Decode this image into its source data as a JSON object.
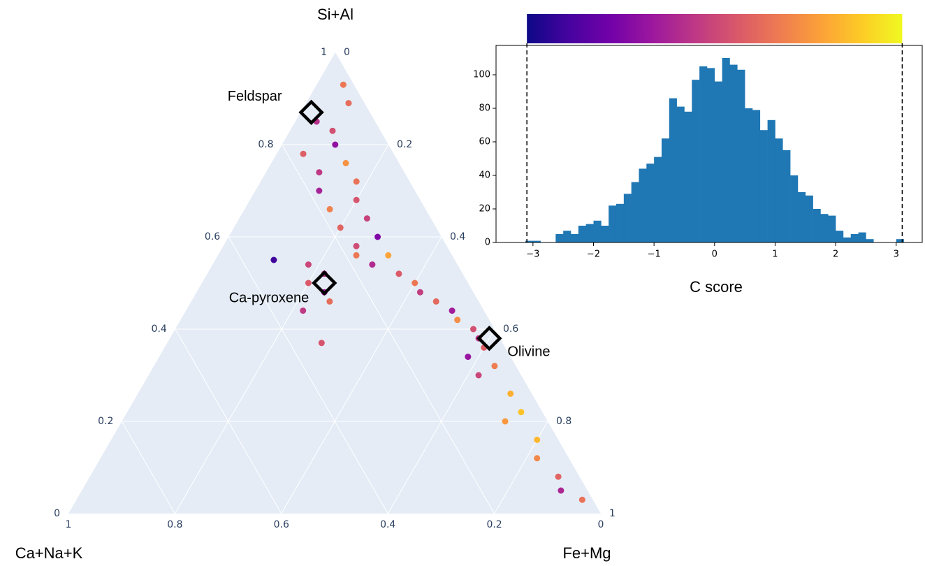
{
  "chart_data": [
    {
      "type": "ternary",
      "a_title": "Si+Al",
      "b_title": "Ca+Na+K",
      "c_title": "Fe+Mg",
      "aticks": [
        0,
        0.2,
        0.4,
        0.6,
        0.8,
        1
      ],
      "bticks": [
        0,
        0.2,
        0.4,
        0.6,
        0.8,
        1
      ],
      "cticks": [
        0,
        0.2,
        0.4,
        0.6,
        0.8,
        1
      ],
      "grid": true,
      "a": [
        0.93,
        0.89,
        0.85,
        0.83,
        0.8,
        0.78,
        0.76,
        0.74,
        0.72,
        0.7,
        0.68,
        0.66,
        0.64,
        0.62,
        0.6,
        0.58,
        0.56,
        0.54,
        0.52,
        0.5,
        0.48,
        0.46,
        0.44,
        0.42,
        0.4,
        0.38,
        0.36,
        0.34,
        0.32,
        0.3,
        0.26,
        0.22,
        0.2,
        0.16,
        0.12,
        0.08,
        0.05,
        0.03,
        0.52,
        0.5,
        0.48,
        0.46,
        0.54,
        0.44,
        0.56,
        0.55,
        0.37
      ],
      "b": [
        0.02,
        0.03,
        0.11,
        0.09,
        0.1,
        0.17,
        0.1,
        0.16,
        0.1,
        0.18,
        0.12,
        0.18,
        0.12,
        0.18,
        0.12,
        0.17,
        0.12,
        0.16,
        0.12,
        0.1,
        0.1,
        0.08,
        0.06,
        0.06,
        0.04,
        0.04,
        0.04,
        0.08,
        0.04,
        0.08,
        0.04,
        0.04,
        0.08,
        0.04,
        0.06,
        0.04,
        0.05,
        0.02,
        0.26,
        0.3,
        0.28,
        0.28,
        0.28,
        0.34,
        0.18,
        0.34,
        0.34
      ],
      "c": [
        0.05,
        0.08,
        0.04,
        0.08,
        0.1,
        0.05,
        0.14,
        0.1,
        0.18,
        0.12,
        0.2,
        0.16,
        0.24,
        0.2,
        0.28,
        0.25,
        0.32,
        0.3,
        0.36,
        0.4,
        0.42,
        0.46,
        0.5,
        0.52,
        0.56,
        0.58,
        0.6,
        0.58,
        0.64,
        0.62,
        0.7,
        0.74,
        0.72,
        0.8,
        0.82,
        0.88,
        0.9,
        0.95,
        0.22,
        0.2,
        0.24,
        0.26,
        0.18,
        0.22,
        0.26,
        0.11,
        0.29
      ],
      "color_values": [
        1.0,
        0.8,
        -0.5,
        0.2,
        -1.2,
        0.5,
        1.5,
        -0.3,
        0.9,
        -0.8,
        0.3,
        1.2,
        -0.1,
        0.6,
        -1.5,
        0.1,
        1.8,
        -0.6,
        0.4,
        1.0,
        -0.2,
        0.7,
        -0.9,
        1.4,
        0.2,
        -0.4,
        0.5,
        -1.1,
        1.1,
        0.0,
        2.0,
        2.3,
        1.6,
        2.1,
        1.3,
        0.6,
        -0.7,
        0.9,
        -0.5,
        0.4,
        -1.0,
        0.8,
        0.0,
        -0.3,
        1.0,
        -2.5,
        0.3
      ],
      "markers": [
        {
          "label": "Feldspar",
          "a": 0.87,
          "b": 0.11,
          "c": 0.02
        },
        {
          "label": "Ca-pyroxene",
          "a": 0.5,
          "b": 0.27,
          "c": 0.23
        },
        {
          "label": "Olivine",
          "a": 0.38,
          "b": 0.02,
          "c": 0.6
        }
      ]
    },
    {
      "type": "histogram",
      "xlabel": "C score",
      "bins": [
        -3.125,
        -3.0,
        -2.875,
        -2.75,
        -2.625,
        -2.5,
        -2.375,
        -2.25,
        -2.125,
        -2.0,
        -1.875,
        -1.75,
        -1.625,
        -1.5,
        -1.375,
        -1.25,
        -1.125,
        -1.0,
        -0.875,
        -0.75,
        -0.625,
        -0.5,
        -0.375,
        -0.25,
        -0.125,
        0,
        0.125,
        0.25,
        0.375,
        0.5,
        0.625,
        0.75,
        0.875,
        1.0,
        1.125,
        1.25,
        1.375,
        1.5,
        1.625,
        1.75,
        1.875,
        2.0,
        2.125,
        2.25,
        2.375,
        2.5,
        2.625,
        2.75,
        2.875,
        3.0,
        3.125
      ],
      "counts": [
        1,
        1,
        0,
        0,
        5,
        7,
        5,
        10,
        11,
        13,
        10,
        22,
        23,
        29,
        36,
        44,
        47,
        51,
        62,
        86,
        81,
        78,
        97,
        105,
        104,
        96,
        110,
        106,
        103,
        80,
        79,
        67,
        73,
        62,
        55,
        40,
        30,
        28,
        20,
        17,
        16,
        7,
        3,
        5,
        6,
        2,
        0,
        0,
        0,
        2
      ],
      "color": "#1f77b4",
      "xlim": [
        -3.61,
        3.43
      ],
      "ylim": [
        0,
        117.5
      ],
      "xticks": [
        {
          "value": -3,
          "label": "−3"
        },
        {
          "value": -2,
          "label": "−2"
        },
        {
          "value": -1,
          "label": "−1"
        },
        0,
        1,
        2,
        3
      ],
      "yticks": [
        0,
        20,
        40,
        60,
        80,
        100
      ],
      "colorbar": {
        "range": [
          -3.1,
          3.1
        ],
        "colors": [
          "#0d0887",
          "#46039f",
          "#7201a8",
          "#9c179e",
          "#bd3786",
          "#d8576b",
          "#ed7953",
          "#fb9f3a",
          "#fdca26",
          "#f0f921"
        ]
      }
    }
  ]
}
